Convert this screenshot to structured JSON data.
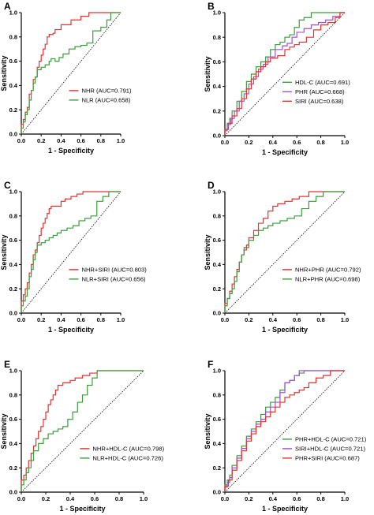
{
  "chart_data": [
    {
      "type": "line",
      "panel_label": "A",
      "xlabel": "1 - Specificity",
      "ylabel": "Sensitivity",
      "xlim": [
        0,
        1
      ],
      "ylim": [
        0,
        1
      ],
      "x_ticks": [
        "0.0",
        "0.2",
        "0.4",
        "0.6",
        "0.8",
        "1.0"
      ],
      "y_ticks": [
        "0.0",
        "0.2",
        "0.4",
        "0.6",
        "0.8",
        "1.0"
      ],
      "legend_placement": "lower-right",
      "series": [
        {
          "name": "NHR (AUC=0.791)",
          "color": "#e8312d",
          "x": [
            0,
            0.02,
            0.04,
            0.06,
            0.08,
            0.1,
            0.12,
            0.14,
            0.16,
            0.18,
            0.2,
            0.22,
            0.24,
            0.26,
            0.28,
            0.3,
            0.32,
            0.34,
            0.36,
            0.4,
            0.44,
            0.5,
            0.56,
            0.6,
            0.68,
            0.78,
            0.85,
            1.0
          ],
          "y": [
            0,
            0.08,
            0.12,
            0.18,
            0.22,
            0.33,
            0.36,
            0.45,
            0.47,
            0.55,
            0.6,
            0.65,
            0.7,
            0.74,
            0.8,
            0.82,
            0.82,
            0.83,
            0.86,
            0.86,
            0.9,
            0.9,
            0.94,
            0.94,
            0.97,
            1.0,
            1.0,
            1.0
          ]
        },
        {
          "name": "NLR (AUC=0.658)",
          "color": "#3a9e3a",
          "x": [
            0,
            0.02,
            0.04,
            0.06,
            0.08,
            0.1,
            0.12,
            0.14,
            0.16,
            0.2,
            0.24,
            0.28,
            0.3,
            0.34,
            0.38,
            0.42,
            0.48,
            0.54,
            0.6,
            0.66,
            0.72,
            0.8,
            0.86,
            0.9,
            0.95,
            1.0
          ],
          "y": [
            0,
            0.05,
            0.1,
            0.16,
            0.2,
            0.28,
            0.36,
            0.42,
            0.47,
            0.53,
            0.55,
            0.57,
            0.6,
            0.62,
            0.6,
            0.63,
            0.66,
            0.7,
            0.72,
            0.73,
            0.75,
            0.85,
            0.88,
            0.94,
            1.0,
            1.0
          ]
        }
      ]
    },
    {
      "type": "line",
      "panel_label": "B",
      "xlabel": "1 - Specificity",
      "ylabel": "Sensitivity",
      "xlim": [
        0,
        1
      ],
      "ylim": [
        0,
        1
      ],
      "x_ticks": [
        "0.0",
        "0.2",
        "0.4",
        "0.6",
        "0.8",
        "1.0"
      ],
      "y_ticks": [
        "0.0",
        "0.2",
        "0.4",
        "0.6",
        "0.8",
        "1.0"
      ],
      "legend_placement": "lower-right",
      "series": [
        {
          "name": "HDL-C (AUC=0.691)",
          "color": "#3a9e3a",
          "x": [
            0,
            0.02,
            0.04,
            0.06,
            0.1,
            0.14,
            0.18,
            0.22,
            0.26,
            0.3,
            0.34,
            0.38,
            0.42,
            0.46,
            0.5,
            0.54,
            0.58,
            0.62,
            0.66,
            0.72,
            0.8,
            0.88,
            0.94,
            1.0
          ],
          "y": [
            0,
            0.05,
            0.1,
            0.14,
            0.2,
            0.28,
            0.36,
            0.44,
            0.5,
            0.56,
            0.6,
            0.64,
            0.7,
            0.74,
            0.76,
            0.8,
            0.82,
            0.88,
            0.94,
            0.96,
            1.0,
            1.0,
            1.0,
            1.0
          ]
        },
        {
          "name": "PHR (AUC=0.668)",
          "color": "#a24fd6",
          "x": [
            0,
            0.02,
            0.05,
            0.08,
            0.12,
            0.16,
            0.2,
            0.24,
            0.28,
            0.32,
            0.36,
            0.42,
            0.48,
            0.52,
            0.56,
            0.6,
            0.66,
            0.72,
            0.78,
            0.84,
            0.9,
            0.96,
            1.0
          ],
          "y": [
            0,
            0.04,
            0.09,
            0.14,
            0.2,
            0.28,
            0.34,
            0.42,
            0.48,
            0.54,
            0.58,
            0.64,
            0.7,
            0.73,
            0.75,
            0.8,
            0.84,
            0.87,
            0.9,
            0.92,
            0.94,
            0.97,
            1.0
          ]
        },
        {
          "name": "SIRI (AUC=0.638)",
          "color": "#e8312d",
          "x": [
            0,
            0.03,
            0.06,
            0.1,
            0.14,
            0.18,
            0.22,
            0.26,
            0.3,
            0.34,
            0.38,
            0.44,
            0.5,
            0.54,
            0.58,
            0.62,
            0.68,
            0.74,
            0.8,
            0.86,
            0.92,
            0.96,
            1.0
          ],
          "y": [
            0,
            0.05,
            0.1,
            0.16,
            0.22,
            0.3,
            0.38,
            0.46,
            0.52,
            0.56,
            0.6,
            0.63,
            0.65,
            0.7,
            0.72,
            0.74,
            0.76,
            0.8,
            0.86,
            0.9,
            0.92,
            0.96,
            1.0
          ]
        }
      ]
    },
    {
      "type": "line",
      "panel_label": "C",
      "xlabel": "1 - Specificity",
      "ylabel": "Sensitivity",
      "xlim": [
        0,
        1
      ],
      "ylim": [
        0,
        1
      ],
      "x_ticks": [
        "0.0",
        "0.2",
        "0.4",
        "0.6",
        "0.8",
        "1.0"
      ],
      "y_ticks": [
        "0.0",
        "0.2",
        "0.4",
        "0.6",
        "0.8",
        "1.0"
      ],
      "legend_placement": "lower-right",
      "series": [
        {
          "name": "NHR+SIRI (AUC=0.803)",
          "color": "#e8312d",
          "x": [
            0,
            0.02,
            0.04,
            0.06,
            0.08,
            0.1,
            0.12,
            0.14,
            0.16,
            0.18,
            0.2,
            0.22,
            0.24,
            0.26,
            0.28,
            0.3,
            0.34,
            0.4,
            0.44,
            0.5,
            0.56,
            0.62,
            0.7,
            0.78,
            0.9,
            1.0
          ],
          "y": [
            0,
            0.1,
            0.15,
            0.2,
            0.25,
            0.33,
            0.4,
            0.48,
            0.52,
            0.58,
            0.64,
            0.7,
            0.74,
            0.78,
            0.82,
            0.86,
            0.88,
            0.88,
            0.92,
            0.94,
            0.96,
            0.98,
            1.0,
            1.0,
            1.0,
            1.0
          ]
        },
        {
          "name": "NLR+SIRI (AUC=0.656)",
          "color": "#3a9e3a",
          "x": [
            0,
            0.02,
            0.04,
            0.06,
            0.08,
            0.1,
            0.12,
            0.14,
            0.16,
            0.2,
            0.24,
            0.28,
            0.32,
            0.36,
            0.4,
            0.46,
            0.52,
            0.58,
            0.64,
            0.7,
            0.76,
            0.82,
            0.88,
            0.94,
            1.0
          ],
          "y": [
            0,
            0.06,
            0.1,
            0.14,
            0.2,
            0.3,
            0.36,
            0.44,
            0.5,
            0.56,
            0.58,
            0.6,
            0.62,
            0.64,
            0.66,
            0.68,
            0.7,
            0.72,
            0.76,
            0.78,
            0.8,
            0.92,
            0.96,
            1.0,
            1.0
          ]
        }
      ]
    },
    {
      "type": "line",
      "panel_label": "D",
      "xlabel": "1 - Specificity",
      "ylabel": "Sensitivity",
      "xlim": [
        0,
        1
      ],
      "ylim": [
        0,
        1
      ],
      "x_ticks": [
        "0.0",
        "0.2",
        "0.4",
        "0.6",
        "0.8",
        "1.0"
      ],
      "y_ticks": [
        "0.0",
        "0.2",
        "0.4",
        "0.6",
        "0.8",
        "1.0"
      ],
      "legend_placement": "lower-right",
      "series": [
        {
          "name": "NHR+PHR (AUC=0.792)",
          "color": "#e8312d",
          "x": [
            0,
            0.02,
            0.04,
            0.06,
            0.08,
            0.1,
            0.12,
            0.14,
            0.16,
            0.18,
            0.2,
            0.24,
            0.28,
            0.32,
            0.36,
            0.4,
            0.44,
            0.5,
            0.56,
            0.62,
            0.7,
            0.8,
            0.9,
            1.0
          ],
          "y": [
            0,
            0.08,
            0.12,
            0.18,
            0.24,
            0.3,
            0.36,
            0.42,
            0.48,
            0.52,
            0.56,
            0.62,
            0.68,
            0.74,
            0.78,
            0.84,
            0.88,
            0.9,
            0.92,
            0.94,
            0.96,
            1.0,
            1.0,
            1.0
          ]
        },
        {
          "name": "NLR+PHR (AUC=0.698)",
          "color": "#3a9e3a",
          "x": [
            0,
            0.02,
            0.04,
            0.06,
            0.08,
            0.1,
            0.12,
            0.14,
            0.16,
            0.2,
            0.24,
            0.28,
            0.32,
            0.36,
            0.4,
            0.46,
            0.52,
            0.58,
            0.64,
            0.7,
            0.76,
            0.82,
            0.88,
            0.94,
            1.0
          ],
          "y": [
            0,
            0.06,
            0.12,
            0.16,
            0.2,
            0.26,
            0.34,
            0.42,
            0.48,
            0.54,
            0.6,
            0.64,
            0.68,
            0.7,
            0.72,
            0.74,
            0.76,
            0.78,
            0.8,
            0.86,
            0.92,
            0.96,
            1.0,
            1.0,
            1.0
          ]
        }
      ]
    },
    {
      "type": "line",
      "panel_label": "E",
      "xlabel": "1 - Specificity",
      "ylabel": "Sensitivity",
      "xlim": [
        0,
        1
      ],
      "ylim": [
        0,
        1
      ],
      "x_ticks": [
        "0.0",
        "0.2",
        "0.4",
        "0.6",
        "0.8",
        "1.0"
      ],
      "y_ticks": [
        "0.0",
        "0.2",
        "0.4",
        "0.6",
        "0.8",
        "1.0"
      ],
      "legend_placement": "lower-right",
      "series": [
        {
          "name": "NHR+HDL-C (AUC=0.798)",
          "color": "#e8312d",
          "x": [
            0,
            0.02,
            0.04,
            0.06,
            0.08,
            0.1,
            0.12,
            0.14,
            0.16,
            0.18,
            0.2,
            0.22,
            0.24,
            0.26,
            0.28,
            0.3,
            0.34,
            0.4,
            0.44,
            0.5,
            0.56,
            0.62,
            0.7,
            0.8,
            0.9,
            1.0
          ],
          "y": [
            0,
            0.1,
            0.14,
            0.2,
            0.26,
            0.32,
            0.38,
            0.44,
            0.5,
            0.54,
            0.6,
            0.66,
            0.72,
            0.76,
            0.8,
            0.84,
            0.88,
            0.9,
            0.92,
            0.94,
            0.96,
            0.98,
            1.0,
            1.0,
            1.0,
            1.0
          ]
        },
        {
          "name": "NLR+HDL-C (AUC=0.726)",
          "color": "#3a9e3a",
          "x": [
            0,
            0.02,
            0.04,
            0.06,
            0.08,
            0.1,
            0.14,
            0.18,
            0.22,
            0.26,
            0.3,
            0.34,
            0.38,
            0.42,
            0.46,
            0.5,
            0.54,
            0.58,
            0.62,
            0.66,
            0.7,
            0.76,
            0.82,
            0.9,
            1.0
          ],
          "y": [
            0,
            0.06,
            0.1,
            0.16,
            0.2,
            0.26,
            0.34,
            0.4,
            0.44,
            0.48,
            0.5,
            0.52,
            0.54,
            0.6,
            0.66,
            0.74,
            0.8,
            0.88,
            0.94,
            1.0,
            1.0,
            1.0,
            1.0,
            1.0,
            1.0
          ]
        }
      ]
    },
    {
      "type": "line",
      "panel_label": "F",
      "xlabel": "1 - Specificity",
      "ylabel": "Sensitivity",
      "xlim": [
        0,
        1
      ],
      "ylim": [
        0,
        1
      ],
      "x_ticks": [
        "0.0",
        "0.2",
        "0.4",
        "0.6",
        "0.8",
        "1.0"
      ],
      "y_ticks": [
        "0.0",
        "0.2",
        "0.4",
        "0.6",
        "0.8",
        "1.0"
      ],
      "legend_placement": "lower-right",
      "series": [
        {
          "name": "PHR+HDL-C (AUC=0.721)",
          "color": "#3a9e3a",
          "x": [
            0,
            0.02,
            0.04,
            0.06,
            0.1,
            0.14,
            0.18,
            0.22,
            0.26,
            0.3,
            0.34,
            0.38,
            0.42,
            0.46,
            0.5,
            0.54,
            0.58,
            0.62,
            0.66,
            0.7,
            0.76,
            0.82,
            0.88,
            0.94,
            1.0
          ],
          "y": [
            0,
            0.06,
            0.1,
            0.14,
            0.22,
            0.3,
            0.38,
            0.46,
            0.52,
            0.58,
            0.64,
            0.7,
            0.74,
            0.78,
            0.84,
            0.9,
            0.92,
            0.96,
            0.98,
            1.0,
            1.0,
            1.0,
            1.0,
            1.0,
            1.0
          ]
        },
        {
          "name": "SIRI+HDL-C (AUC=0.721)",
          "color": "#a24fd6",
          "x": [
            0,
            0.02,
            0.04,
            0.06,
            0.1,
            0.14,
            0.18,
            0.22,
            0.26,
            0.3,
            0.34,
            0.38,
            0.42,
            0.46,
            0.5,
            0.54,
            0.58,
            0.62,
            0.66,
            0.7,
            0.74,
            0.8,
            0.86,
            0.92,
            1.0
          ],
          "y": [
            0,
            0.04,
            0.08,
            0.12,
            0.2,
            0.28,
            0.36,
            0.44,
            0.5,
            0.56,
            0.6,
            0.66,
            0.7,
            0.74,
            0.82,
            0.9,
            0.92,
            0.96,
            1.0,
            1.0,
            1.0,
            1.0,
            1.0,
            1.0,
            1.0
          ]
        },
        {
          "name": "PHR+SIRI (AUC=0.687)",
          "color": "#e8312d",
          "x": [
            0,
            0.03,
            0.06,
            0.1,
            0.14,
            0.18,
            0.22,
            0.26,
            0.3,
            0.34,
            0.38,
            0.42,
            0.46,
            0.5,
            0.54,
            0.58,
            0.62,
            0.66,
            0.7,
            0.76,
            0.82,
            0.88,
            0.94,
            1.0
          ],
          "y": [
            0,
            0.05,
            0.1,
            0.18,
            0.26,
            0.34,
            0.42,
            0.48,
            0.54,
            0.58,
            0.62,
            0.66,
            0.7,
            0.74,
            0.78,
            0.8,
            0.82,
            0.84,
            0.86,
            0.9,
            0.94,
            0.96,
            1.0,
            1.0
          ]
        }
      ]
    }
  ]
}
